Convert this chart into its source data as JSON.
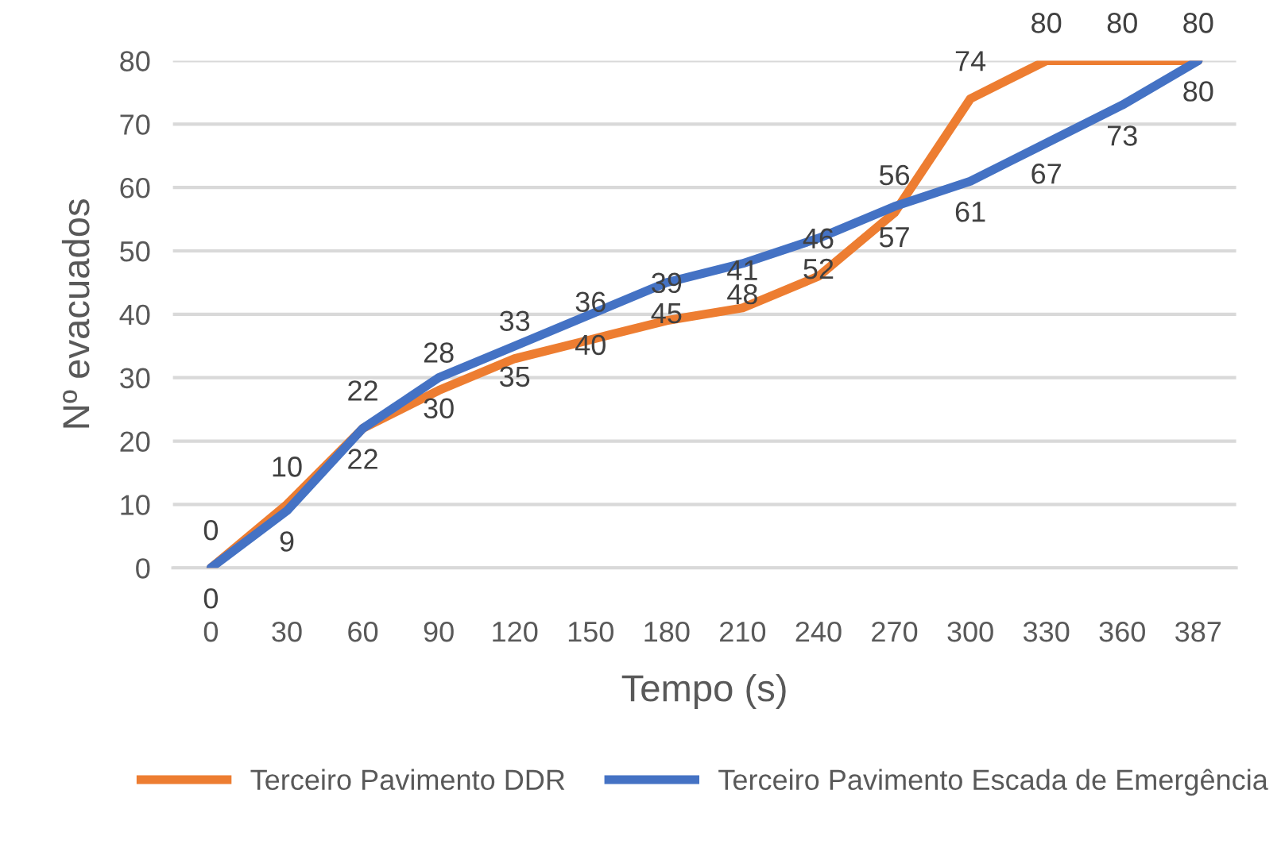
{
  "chart_data": {
    "type": "line",
    "xlabel": "Tempo (s)",
    "ylabel": "Nº evacuados",
    "categories": [
      "0",
      "30",
      "60",
      "90",
      "120",
      "150",
      "180",
      "210",
      "240",
      "270",
      "300",
      "330",
      "360",
      "387"
    ],
    "series": [
      {
        "name": "Terceiro Pavimento DDR",
        "color": "#ed7d31",
        "values": [
          0,
          10,
          22,
          28,
          33,
          36,
          39,
          41,
          46,
          56,
          74,
          80,
          80,
          80
        ]
      },
      {
        "name": "Terceiro Pavimento Escada de Emergência",
        "color": "#4472c4",
        "values": [
          0,
          9,
          22,
          30,
          35,
          40,
          45,
          48,
          52,
          57,
          61,
          67,
          73,
          80
        ]
      }
    ],
    "ylim": [
      0,
      80
    ],
    "yticks": [
      0,
      10,
      20,
      30,
      40,
      50,
      60,
      70,
      80
    ],
    "grid": "y",
    "legend": "bottom",
    "data_labels": true,
    "marker": "none",
    "line_style": "solid"
  }
}
